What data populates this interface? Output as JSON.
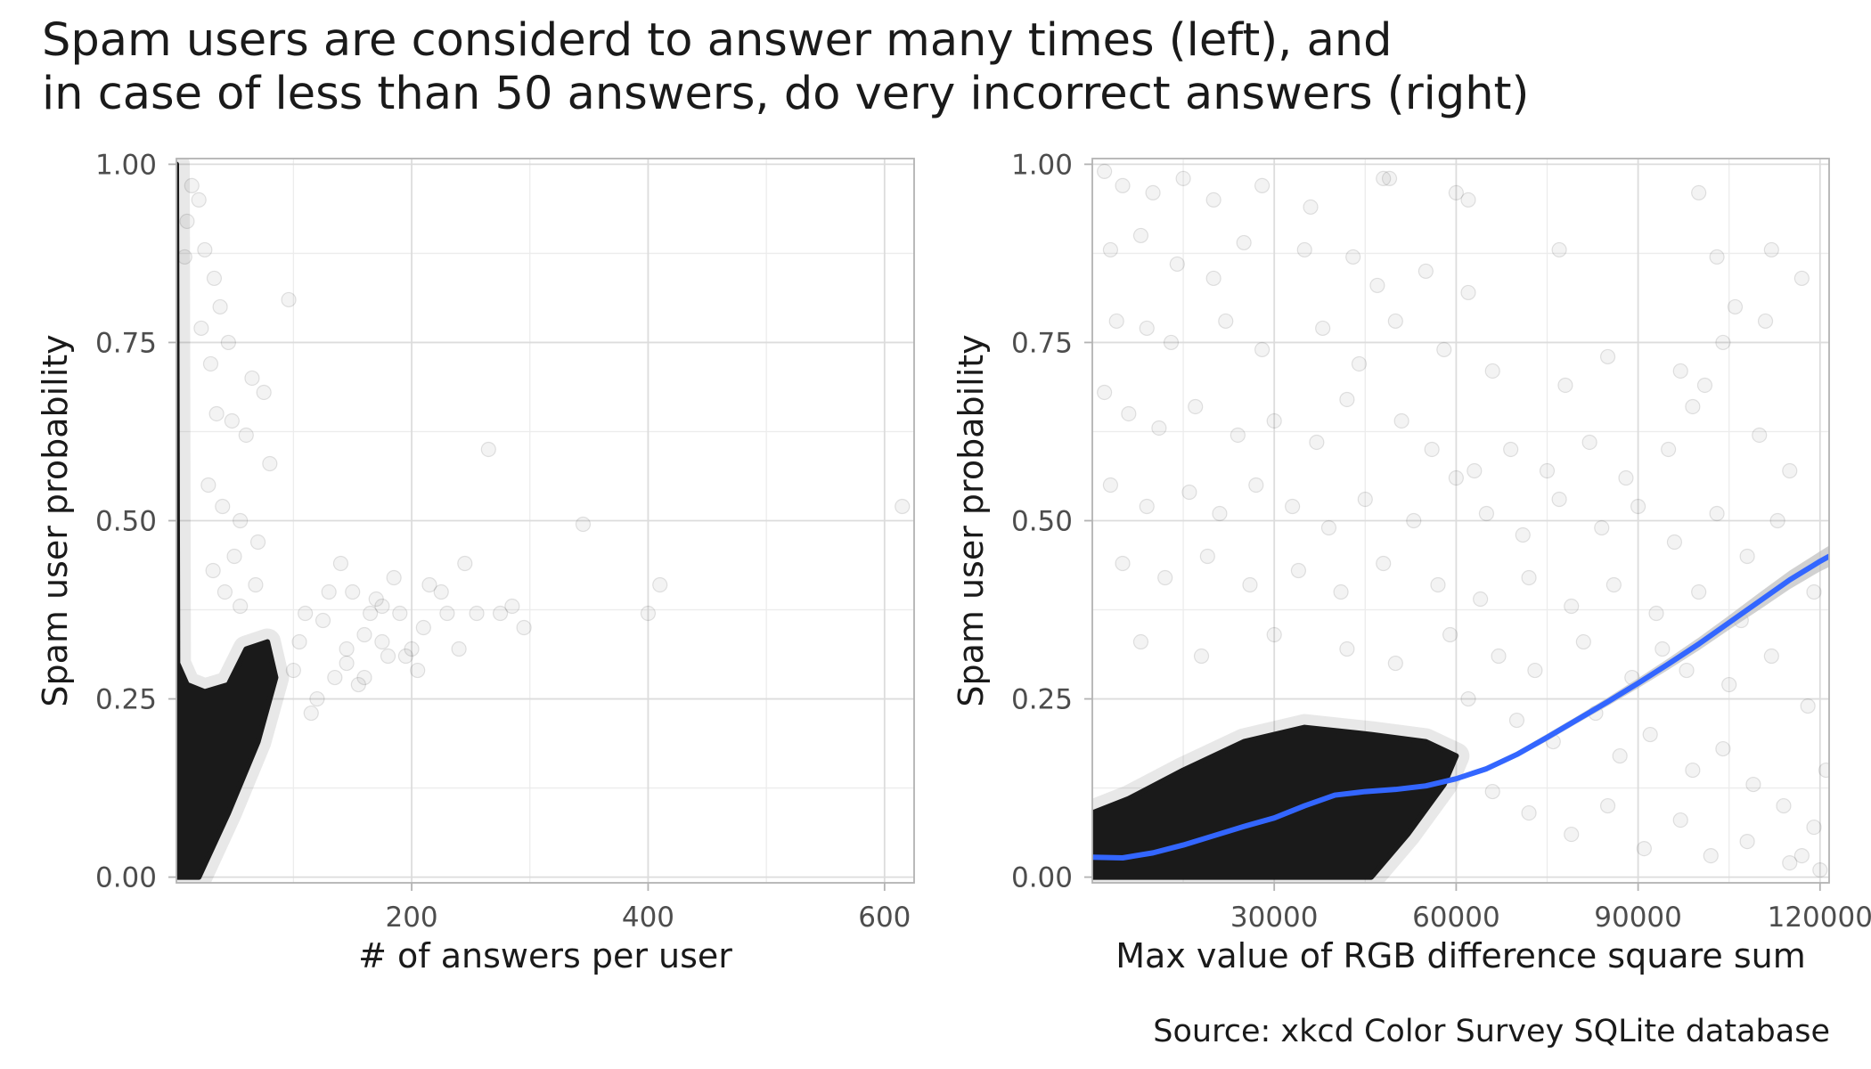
{
  "title_lines": [
    "Spam users are considerd to answer many times (left), and",
    "in case of less than 50 answers, do very incorrect answers (right)"
  ],
  "caption": "Source: xkcd Color Survey SQLite database",
  "colors": {
    "points": "#1a1a1a",
    "smooth_line": "#3366ff",
    "ribbon": "#bdbdbd",
    "grid": "#dcdcdc",
    "panel_border": "#b3b3b3"
  },
  "chart_data": [
    {
      "type": "scatter",
      "xlabel": "# of answers per user",
      "ylabel": "Spam user probability",
      "x_ticks": [
        200,
        400,
        600
      ],
      "x_tick_labels": [
        "200",
        "400",
        "600"
      ],
      "y_ticks": [
        0,
        0.25,
        0.5,
        0.75,
        1
      ],
      "y_tick_labels": [
        "0.00",
        "0.25",
        "0.50",
        "0.75",
        "1.00"
      ],
      "xlim": [
        1,
        625
      ],
      "ylim": [
        -0.008,
        1.008
      ],
      "grid": true,
      "point_alpha": 0.05,
      "dense_region": {
        "description": "solid cluster of overlapping points",
        "polygon": [
          [
            1,
            0
          ],
          [
            20,
            0
          ],
          [
            45,
            0.09
          ],
          [
            70,
            0.19
          ],
          [
            85,
            0.28
          ],
          [
            78,
            0.33
          ],
          [
            60,
            0.32
          ],
          [
            45,
            0.27
          ],
          [
            25,
            0.26
          ],
          [
            10,
            0.27
          ],
          [
            2,
            0.3
          ],
          [
            1,
            1.0
          ]
        ]
      },
      "points": [
        [
          10,
          0.92
        ],
        [
          8,
          0.87
        ],
        [
          14,
          0.97
        ],
        [
          20,
          0.95
        ],
        [
          25,
          0.88
        ],
        [
          33,
          0.84
        ],
        [
          38,
          0.8
        ],
        [
          22,
          0.77
        ],
        [
          30,
          0.72
        ],
        [
          45,
          0.75
        ],
        [
          65,
          0.7
        ],
        [
          75,
          0.68
        ],
        [
          80,
          0.58
        ],
        [
          60,
          0.62
        ],
        [
          48,
          0.64
        ],
        [
          35,
          0.65
        ],
        [
          28,
          0.55
        ],
        [
          40,
          0.52
        ],
        [
          55,
          0.5
        ],
        [
          70,
          0.47
        ],
        [
          50,
          0.45
        ],
        [
          32,
          0.43
        ],
        [
          42,
          0.4
        ],
        [
          55,
          0.38
        ],
        [
          68,
          0.41
        ],
        [
          96,
          0.81
        ],
        [
          265,
          0.6
        ],
        [
          345,
          0.495
        ],
        [
          410,
          0.41
        ],
        [
          400,
          0.37
        ],
        [
          615,
          0.52
        ],
        [
          110,
          0.37
        ],
        [
          125,
          0.36
        ],
        [
          140,
          0.44
        ],
        [
          150,
          0.4
        ],
        [
          160,
          0.34
        ],
        [
          175,
          0.38
        ],
        [
          180,
          0.31
        ],
        [
          190,
          0.37
        ],
        [
          200,
          0.32
        ],
        [
          205,
          0.29
        ],
        [
          215,
          0.41
        ],
        [
          230,
          0.37
        ],
        [
          245,
          0.44
        ],
        [
          255,
          0.37
        ],
        [
          275,
          0.37
        ],
        [
          285,
          0.38
        ],
        [
          295,
          0.35
        ],
        [
          240,
          0.32
        ],
        [
          135,
          0.28
        ],
        [
          145,
          0.32
        ],
        [
          155,
          0.27
        ],
        [
          165,
          0.37
        ],
        [
          185,
          0.42
        ],
        [
          170,
          0.39
        ],
        [
          115,
          0.23
        ],
        [
          120,
          0.25
        ],
        [
          100,
          0.29
        ],
        [
          105,
          0.33
        ],
        [
          130,
          0.4
        ],
        [
          145,
          0.3
        ],
        [
          160,
          0.28
        ],
        [
          175,
          0.33
        ],
        [
          195,
          0.31
        ],
        [
          210,
          0.35
        ],
        [
          225,
          0.4
        ]
      ]
    },
    {
      "type": "scatter",
      "xlabel": "Max value of RGB difference square sum",
      "ylabel": "Spam user probability",
      "x_ticks": [
        30000,
        60000,
        90000,
        120000
      ],
      "x_tick_labels": [
        "30000",
        "60000",
        "90000",
        "120000"
      ],
      "y_ticks": [
        0,
        0.25,
        0.5,
        0.75,
        1
      ],
      "y_tick_labels": [
        "0.00",
        "0.25",
        "0.50",
        "0.75",
        "1.00"
      ],
      "xlim": [
        0,
        121500
      ],
      "ylim": [
        -0.008,
        1.008
      ],
      "grid": true,
      "point_alpha": 0.05,
      "dense_region": {
        "description": "solid cluster of overlapping points",
        "polygon": [
          [
            0,
            0
          ],
          [
            46000,
            0
          ],
          [
            52000,
            0.06
          ],
          [
            58000,
            0.13
          ],
          [
            60000,
            0.17
          ],
          [
            55000,
            0.19
          ],
          [
            46000,
            0.2
          ],
          [
            35000,
            0.21
          ],
          [
            25000,
            0.19
          ],
          [
            15000,
            0.15
          ],
          [
            6000,
            0.11
          ],
          [
            0,
            0.09
          ]
        ]
      },
      "smooth_line": {
        "x": [
          0,
          5000,
          10000,
          15000,
          20000,
          25000,
          30000,
          35000,
          40000,
          45000,
          50000,
          55000,
          60000,
          65000,
          70000,
          75000,
          80000,
          85000,
          90000,
          95000,
          100000,
          105000,
          110000,
          115000,
          120000,
          121500
        ],
        "y": [
          0.028,
          0.027,
          0.034,
          0.045,
          0.058,
          0.071,
          0.083,
          0.1,
          0.115,
          0.12,
          0.123,
          0.128,
          0.138,
          0.152,
          0.172,
          0.196,
          0.221,
          0.246,
          0.272,
          0.299,
          0.327,
          0.357,
          0.387,
          0.417,
          0.443,
          0.45
        ],
        "se_halfwidth": [
          0.003,
          0.003,
          0.003,
          0.003,
          0.003,
          0.003,
          0.003,
          0.003,
          0.003,
          0.003,
          0.003,
          0.003,
          0.003,
          0.004,
          0.004,
          0.005,
          0.005,
          0.006,
          0.007,
          0.008,
          0.009,
          0.01,
          0.012,
          0.013,
          0.014,
          0.015
        ]
      },
      "points": [
        [
          2000,
          0.99
        ],
        [
          5000,
          0.97
        ],
        [
          10000,
          0.96
        ],
        [
          15000,
          0.98
        ],
        [
          20000,
          0.95
        ],
        [
          28000,
          0.97
        ],
        [
          36000,
          0.94
        ],
        [
          48000,
          0.98
        ],
        [
          49000,
          0.98
        ],
        [
          60000,
          0.96
        ],
        [
          62000,
          0.95
        ],
        [
          100000,
          0.96
        ],
        [
          3000,
          0.88
        ],
        [
          8000,
          0.9
        ],
        [
          14000,
          0.86
        ],
        [
          20000,
          0.84
        ],
        [
          25000,
          0.89
        ],
        [
          35000,
          0.88
        ],
        [
          43000,
          0.87
        ],
        [
          47000,
          0.83
        ],
        [
          55000,
          0.85
        ],
        [
          62000,
          0.82
        ],
        [
          77000,
          0.88
        ],
        [
          103000,
          0.87
        ],
        [
          112000,
          0.88
        ],
        [
          4000,
          0.78
        ],
        [
          9000,
          0.77
        ],
        [
          13000,
          0.75
        ],
        [
          22000,
          0.78
        ],
        [
          28000,
          0.74
        ],
        [
          38000,
          0.77
        ],
        [
          44000,
          0.72
        ],
        [
          50000,
          0.78
        ],
        [
          58000,
          0.74
        ],
        [
          66000,
          0.71
        ],
        [
          78000,
          0.69
        ],
        [
          85000,
          0.73
        ],
        [
          97000,
          0.71
        ],
        [
          104000,
          0.75
        ],
        [
          106000,
          0.8
        ],
        [
          111000,
          0.78
        ],
        [
          117000,
          0.84
        ],
        [
          2000,
          0.68
        ],
        [
          6000,
          0.65
        ],
        [
          11000,
          0.63
        ],
        [
          17000,
          0.66
        ],
        [
          24000,
          0.62
        ],
        [
          30000,
          0.64
        ],
        [
          37000,
          0.61
        ],
        [
          42000,
          0.67
        ],
        [
          51000,
          0.64
        ],
        [
          56000,
          0.6
        ],
        [
          63000,
          0.57
        ],
        [
          69000,
          0.6
        ],
        [
          75000,
          0.57
        ],
        [
          82000,
          0.61
        ],
        [
          88000,
          0.56
        ],
        [
          95000,
          0.6
        ],
        [
          99000,
          0.66
        ],
        [
          101000,
          0.69
        ],
        [
          110000,
          0.62
        ],
        [
          115000,
          0.57
        ],
        [
          3000,
          0.55
        ],
        [
          9000,
          0.52
        ],
        [
          16000,
          0.54
        ],
        [
          21000,
          0.51
        ],
        [
          27000,
          0.55
        ],
        [
          33000,
          0.52
        ],
        [
          39000,
          0.49
        ],
        [
          45000,
          0.53
        ],
        [
          53000,
          0.5
        ],
        [
          60000,
          0.56
        ],
        [
          65000,
          0.51
        ],
        [
          71000,
          0.48
        ],
        [
          77000,
          0.53
        ],
        [
          84000,
          0.49
        ],
        [
          90000,
          0.52
        ],
        [
          96000,
          0.47
        ],
        [
          103000,
          0.51
        ],
        [
          108000,
          0.45
        ],
        [
          113000,
          0.5
        ],
        [
          5000,
          0.44
        ],
        [
          12000,
          0.42
        ],
        [
          19000,
          0.45
        ],
        [
          26000,
          0.41
        ],
        [
          34000,
          0.43
        ],
        [
          41000,
          0.4
        ],
        [
          48000,
          0.44
        ],
        [
          57000,
          0.41
        ],
        [
          64000,
          0.39
        ],
        [
          72000,
          0.42
        ],
        [
          79000,
          0.38
        ],
        [
          86000,
          0.41
        ],
        [
          93000,
          0.37
        ],
        [
          100000,
          0.4
        ],
        [
          107000,
          0.36
        ],
        [
          119000,
          0.4
        ],
        [
          8000,
          0.33
        ],
        [
          18000,
          0.31
        ],
        [
          30000,
          0.34
        ],
        [
          42000,
          0.32
        ],
        [
          50000,
          0.3
        ],
        [
          59000,
          0.34
        ],
        [
          67000,
          0.31
        ],
        [
          73000,
          0.29
        ],
        [
          81000,
          0.33
        ],
        [
          89000,
          0.28
        ],
        [
          94000,
          0.32
        ],
        [
          98000,
          0.29
        ],
        [
          105000,
          0.27
        ],
        [
          112000,
          0.31
        ],
        [
          118000,
          0.24
        ],
        [
          62000,
          0.25
        ],
        [
          70000,
          0.22
        ],
        [
          76000,
          0.19
        ],
        [
          83000,
          0.23
        ],
        [
          87000,
          0.17
        ],
        [
          92000,
          0.2
        ],
        [
          99000,
          0.15
        ],
        [
          104000,
          0.18
        ],
        [
          109000,
          0.13
        ],
        [
          114000,
          0.1
        ],
        [
          119000,
          0.07
        ],
        [
          121000,
          0.15
        ],
        [
          66000,
          0.12
        ],
        [
          72000,
          0.09
        ],
        [
          79000,
          0.06
        ],
        [
          85000,
          0.1
        ],
        [
          91000,
          0.04
        ],
        [
          97000,
          0.08
        ],
        [
          102000,
          0.03
        ],
        [
          108000,
          0.05
        ],
        [
          115000,
          0.02
        ],
        [
          120000,
          0.01
        ],
        [
          117000,
          0.03
        ]
      ]
    }
  ]
}
